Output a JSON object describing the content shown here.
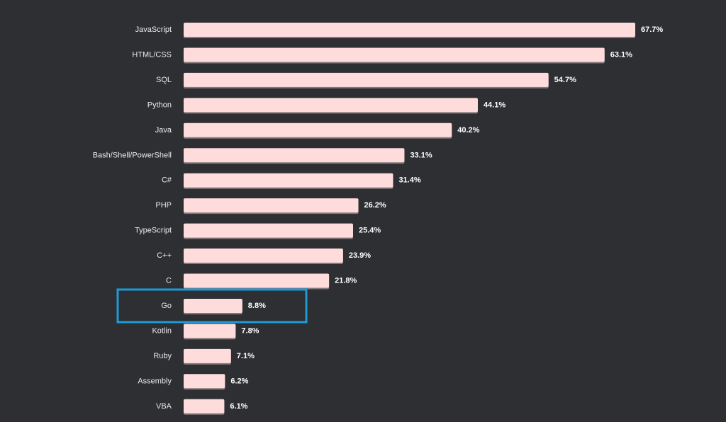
{
  "chart_data": {
    "type": "bar",
    "orientation": "horizontal",
    "categories": [
      "JavaScript",
      "HTML/CSS",
      "SQL",
      "Python",
      "Java",
      "Bash/Shell/PowerShell",
      "C#",
      "PHP",
      "TypeScript",
      "C++",
      "C",
      "Go",
      "Kotlin",
      "Ruby",
      "Assembly",
      "VBA"
    ],
    "values": [
      67.7,
      63.1,
      54.7,
      44.1,
      40.2,
      33.1,
      31.4,
      26.2,
      25.4,
      23.9,
      21.8,
      8.8,
      7.8,
      7.1,
      6.2,
      6.1
    ],
    "value_labels": [
      "67.7%",
      "63.1%",
      "54.7%",
      "44.1%",
      "40.2%",
      "33.1%",
      "31.4%",
      "26.2%",
      "25.4%",
      "23.9%",
      "21.8%",
      "8.8%",
      "7.8%",
      "7.1%",
      "6.2%",
      "6.1%"
    ],
    "unit": "%",
    "xlim": [
      0,
      67.7
    ],
    "grid": false,
    "highlighted_category": "Go"
  },
  "colors": {
    "background": "#2d2f33",
    "bar": "#ffdcdc",
    "label_text": "#e9eaec",
    "value_text": "#ffffff",
    "highlight": "#1e9bd7"
  }
}
